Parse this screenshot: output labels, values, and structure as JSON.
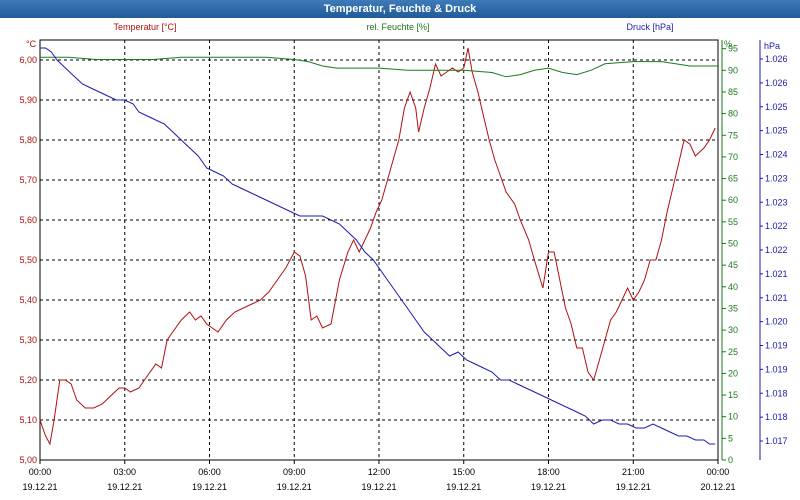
{
  "window": {
    "title": "Temperatur, Feuchte & Druck"
  },
  "colors": {
    "temperature": "#b01010",
    "humidity": "#1a7a1a",
    "pressure": "#1a1ab0",
    "grid": "#000000"
  },
  "chart_data": {
    "type": "line",
    "title": "Temperatur, Feuchte & Druck",
    "x_ticks": [
      {
        "time": "00:00",
        "date": "19.12.21"
      },
      {
        "time": "03:00",
        "date": "19.12.21"
      },
      {
        "time": "06:00",
        "date": "19.12.21"
      },
      {
        "time": "09:00",
        "date": "19.12.21"
      },
      {
        "time": "12:00",
        "date": "19.12.21"
      },
      {
        "time": "15:00",
        "date": "19.12.21"
      },
      {
        "time": "18:00",
        "date": "19.12.21"
      },
      {
        "time": "21:00",
        "date": "19.12.21"
      },
      {
        "time": "00:00",
        "date": "20.12.21"
      }
    ],
    "xlim_hours": [
      0,
      24
    ],
    "grid": true,
    "axes": {
      "temperature": {
        "label": "Temperatur [°C]",
        "unit": "°C",
        "ylim": [
          5.0,
          6.05
        ],
        "ticks": [
          "6,00",
          "5,90",
          "5,80",
          "5,70",
          "5,60",
          "5,50",
          "5,40",
          "5,30",
          "5,20",
          "5,10",
          "5,00"
        ]
      },
      "humidity": {
        "label": "rel. Feuchte [%]",
        "unit": "%",
        "ylim": [
          0,
          97
        ],
        "ticks": [
          "95",
          "90",
          "85",
          "80",
          "75",
          "70",
          "65",
          "60",
          "55",
          "50",
          "45",
          "40",
          "35",
          "30",
          "25",
          "20",
          "15",
          "10",
          "5",
          "0"
        ]
      },
      "pressure": {
        "label": "Druck [hPa]",
        "unit": "hPa",
        "ticks": [
          "1.026",
          "1.026",
          "1.025",
          "1.025",
          "1.024",
          "1.023",
          "1.023",
          "1.022",
          "1.022",
          "1.021",
          "1.021",
          "1.020",
          "1.019",
          "1.019",
          "1.018",
          "1.018",
          "1.017"
        ]
      }
    },
    "series": [
      {
        "name": "Temperatur [°C]",
        "axis": "temperature",
        "points": [
          [
            0,
            5.1
          ],
          [
            0.2,
            5.06
          ],
          [
            0.35,
            5.04
          ],
          [
            0.5,
            5.1
          ],
          [
            0.7,
            5.2
          ],
          [
            0.9,
            5.2
          ],
          [
            1.1,
            5.19
          ],
          [
            1.3,
            5.15
          ],
          [
            1.6,
            5.13
          ],
          [
            1.9,
            5.13
          ],
          [
            2.2,
            5.14
          ],
          [
            2.5,
            5.16
          ],
          [
            2.8,
            5.18
          ],
          [
            3.0,
            5.18
          ],
          [
            3.2,
            5.17
          ],
          [
            3.5,
            5.18
          ],
          [
            3.8,
            5.21
          ],
          [
            4.1,
            5.24
          ],
          [
            4.3,
            5.23
          ],
          [
            4.5,
            5.3
          ],
          [
            4.8,
            5.33
          ],
          [
            5.0,
            5.35
          ],
          [
            5.3,
            5.37
          ],
          [
            5.5,
            5.35
          ],
          [
            5.7,
            5.36
          ],
          [
            5.9,
            5.34
          ],
          [
            6.1,
            5.33
          ],
          [
            6.3,
            5.32
          ],
          [
            6.6,
            5.35
          ],
          [
            6.9,
            5.37
          ],
          [
            7.2,
            5.38
          ],
          [
            7.5,
            5.39
          ],
          [
            7.8,
            5.4
          ],
          [
            8.1,
            5.42
          ],
          [
            8.4,
            5.45
          ],
          [
            8.7,
            5.48
          ],
          [
            9.0,
            5.52
          ],
          [
            9.2,
            5.51
          ],
          [
            9.4,
            5.46
          ],
          [
            9.6,
            5.35
          ],
          [
            9.8,
            5.36
          ],
          [
            10.0,
            5.33
          ],
          [
            10.3,
            5.34
          ],
          [
            10.6,
            5.45
          ],
          [
            10.9,
            5.52
          ],
          [
            11.1,
            5.55
          ],
          [
            11.3,
            5.52
          ],
          [
            11.5,
            5.55
          ],
          [
            11.7,
            5.58
          ],
          [
            11.9,
            5.62
          ],
          [
            12.1,
            5.65
          ],
          [
            12.3,
            5.7
          ],
          [
            12.5,
            5.75
          ],
          [
            12.7,
            5.8
          ],
          [
            12.9,
            5.88
          ],
          [
            13.1,
            5.92
          ],
          [
            13.3,
            5.88
          ],
          [
            13.4,
            5.82
          ],
          [
            13.6,
            5.88
          ],
          [
            13.8,
            5.93
          ],
          [
            14.0,
            5.99
          ],
          [
            14.2,
            5.96
          ],
          [
            14.4,
            5.97
          ],
          [
            14.6,
            5.98
          ],
          [
            14.8,
            5.97
          ],
          [
            15.0,
            5.98
          ],
          [
            15.15,
            6.03
          ],
          [
            15.3,
            5.97
          ],
          [
            15.5,
            5.92
          ],
          [
            15.7,
            5.86
          ],
          [
            15.9,
            5.8
          ],
          [
            16.1,
            5.75
          ],
          [
            16.3,
            5.71
          ],
          [
            16.5,
            5.67
          ],
          [
            16.8,
            5.64
          ],
          [
            17.0,
            5.6
          ],
          [
            17.3,
            5.55
          ],
          [
            17.5,
            5.5
          ],
          [
            17.8,
            5.43
          ],
          [
            18.0,
            5.52
          ],
          [
            18.2,
            5.52
          ],
          [
            18.4,
            5.45
          ],
          [
            18.6,
            5.38
          ],
          [
            18.8,
            5.34
          ],
          [
            19.0,
            5.28
          ],
          [
            19.2,
            5.28
          ],
          [
            19.4,
            5.22
          ],
          [
            19.6,
            5.2
          ],
          [
            19.8,
            5.25
          ],
          [
            20.0,
            5.3
          ],
          [
            20.2,
            5.35
          ],
          [
            20.4,
            5.37
          ],
          [
            20.6,
            5.4
          ],
          [
            20.8,
            5.43
          ],
          [
            21.0,
            5.4
          ],
          [
            21.2,
            5.42
          ],
          [
            21.4,
            5.45
          ],
          [
            21.6,
            5.5
          ],
          [
            21.8,
            5.5
          ],
          [
            22.0,
            5.55
          ],
          [
            22.2,
            5.62
          ],
          [
            22.4,
            5.68
          ],
          [
            22.6,
            5.74
          ],
          [
            22.8,
            5.8
          ],
          [
            23.0,
            5.79
          ],
          [
            23.2,
            5.76
          ],
          [
            23.5,
            5.78
          ],
          [
            23.7,
            5.8
          ],
          [
            23.9,
            5.83
          ]
        ]
      },
      {
        "name": "rel. Feuchte [%]",
        "axis": "humidity",
        "points": [
          [
            0,
            93
          ],
          [
            1,
            93
          ],
          [
            2,
            92.5
          ],
          [
            3,
            92.5
          ],
          [
            4,
            92.5
          ],
          [
            5,
            93
          ],
          [
            6,
            93
          ],
          [
            7,
            93
          ],
          [
            8,
            93
          ],
          [
            9,
            92.5
          ],
          [
            9.5,
            92
          ],
          [
            10,
            91
          ],
          [
            10.5,
            90.5
          ],
          [
            11,
            90.5
          ],
          [
            12,
            90.5
          ],
          [
            13,
            90
          ],
          [
            14,
            90
          ],
          [
            15,
            90
          ],
          [
            16,
            89.5
          ],
          [
            16.5,
            88.5
          ],
          [
            17,
            89
          ],
          [
            17.5,
            90
          ],
          [
            18,
            90.5
          ],
          [
            18.5,
            89.5
          ],
          [
            19,
            89
          ],
          [
            19.5,
            90
          ],
          [
            20,
            91.5
          ],
          [
            21,
            92
          ],
          [
            22,
            92
          ],
          [
            22.5,
            91.5
          ],
          [
            23,
            91
          ],
          [
            24,
            91
          ]
        ]
      },
      {
        "name": "Druck [hPa]",
        "axis": "pressure",
        "points": [
          [
            0,
            6.03
          ],
          [
            0.2,
            6.03
          ],
          [
            0.4,
            6.02
          ],
          [
            0.6,
            6.0
          ],
          [
            0.9,
            5.98
          ],
          [
            1.2,
            5.96
          ],
          [
            1.5,
            5.94
          ],
          [
            1.8,
            5.93
          ],
          [
            2.1,
            5.92
          ],
          [
            2.4,
            5.91
          ],
          [
            2.7,
            5.9
          ],
          [
            3.0,
            5.9
          ],
          [
            3.3,
            5.89
          ],
          [
            3.5,
            5.87
          ],
          [
            3.8,
            5.86
          ],
          [
            4.1,
            5.85
          ],
          [
            4.4,
            5.84
          ],
          [
            4.7,
            5.82
          ],
          [
            5.0,
            5.8
          ],
          [
            5.3,
            5.78
          ],
          [
            5.6,
            5.76
          ],
          [
            5.9,
            5.73
          ],
          [
            6.2,
            5.72
          ],
          [
            6.5,
            5.71
          ],
          [
            6.8,
            5.69
          ],
          [
            7.1,
            5.68
          ],
          [
            7.4,
            5.67
          ],
          [
            7.7,
            5.66
          ],
          [
            8.0,
            5.65
          ],
          [
            8.3,
            5.64
          ],
          [
            8.6,
            5.63
          ],
          [
            8.9,
            5.62
          ],
          [
            9.2,
            5.61
          ],
          [
            9.5,
            5.61
          ],
          [
            10.0,
            5.61
          ],
          [
            10.3,
            5.6
          ],
          [
            10.6,
            5.59
          ],
          [
            10.9,
            5.57
          ],
          [
            11.2,
            5.55
          ],
          [
            11.5,
            5.52
          ],
          [
            11.8,
            5.5
          ],
          [
            12.1,
            5.47
          ],
          [
            12.4,
            5.44
          ],
          [
            12.7,
            5.41
          ],
          [
            13.0,
            5.38
          ],
          [
            13.3,
            5.35
          ],
          [
            13.6,
            5.32
          ],
          [
            13.9,
            5.3
          ],
          [
            14.2,
            5.28
          ],
          [
            14.5,
            5.26
          ],
          [
            14.8,
            5.27
          ],
          [
            15.1,
            5.25
          ],
          [
            15.4,
            5.24
          ],
          [
            15.7,
            5.23
          ],
          [
            16.0,
            5.22
          ],
          [
            16.3,
            5.2
          ],
          [
            16.6,
            5.2
          ],
          [
            16.9,
            5.19
          ],
          [
            17.2,
            5.18
          ],
          [
            17.5,
            5.17
          ],
          [
            17.8,
            5.16
          ],
          [
            18.1,
            5.15
          ],
          [
            18.4,
            5.14
          ],
          [
            18.7,
            5.13
          ],
          [
            19.0,
            5.12
          ],
          [
            19.3,
            5.11
          ],
          [
            19.6,
            5.09
          ],
          [
            19.9,
            5.1
          ],
          [
            20.2,
            5.1
          ],
          [
            20.5,
            5.09
          ],
          [
            20.8,
            5.09
          ],
          [
            21.1,
            5.08
          ],
          [
            21.4,
            5.08
          ],
          [
            21.7,
            5.09
          ],
          [
            22.0,
            5.08
          ],
          [
            22.3,
            5.07
          ],
          [
            22.6,
            5.06
          ],
          [
            22.9,
            5.06
          ],
          [
            23.2,
            5.05
          ],
          [
            23.5,
            5.05
          ],
          [
            23.7,
            5.04
          ],
          [
            23.9,
            5.04
          ]
        ]
      }
    ]
  }
}
